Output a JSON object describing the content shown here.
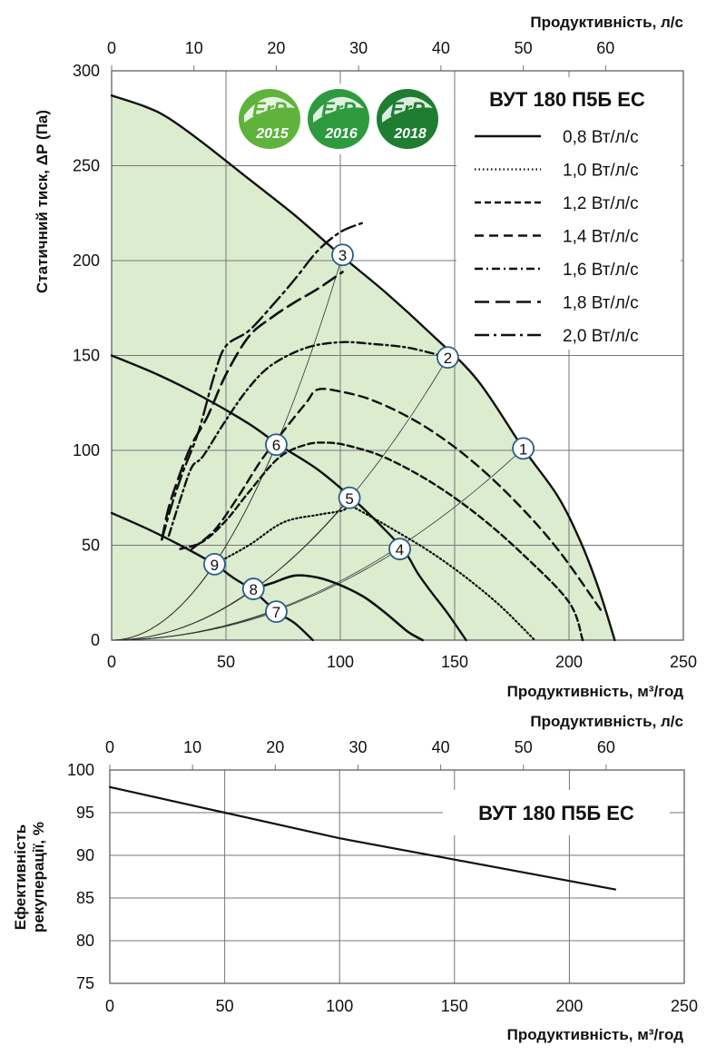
{
  "chart_data": [
    {
      "type": "line",
      "title": "ВУТ 180 П5Б ЕС",
      "xlabel": "Продуктивність, м³/год",
      "x2label": "Продуктивність, л/с",
      "ylabel": "Статичний тиск, ΔР (Па)",
      "xlim": [
        0,
        250
      ],
      "ylim": [
        0,
        300
      ],
      "x_ticks": [
        "0",
        "50",
        "100",
        "150",
        "200",
        "250"
      ],
      "x2_ticks": [
        "0",
        "10",
        "20",
        "30",
        "40",
        "50",
        "60"
      ],
      "y_ticks": [
        "0",
        "50",
        "100",
        "150",
        "200",
        "250",
        "300"
      ],
      "grid": true,
      "badges": [
        {
          "text": "ErP",
          "year": "2015",
          "color": "#5fb33c"
        },
        {
          "text": "ErP",
          "year": "2016",
          "color": "#2e9a3e"
        },
        {
          "text": "ErP",
          "year": "2018",
          "color": "#1f7d32"
        }
      ],
      "legend": [
        {
          "label": "0,8 Вт/л/с",
          "dash": "solid"
        },
        {
          "label": "1,0 Вт/л/с",
          "dash": "dotted"
        },
        {
          "label": "1,2 Вт/л/с",
          "dash": "short-dash"
        },
        {
          "label": "1,4 Вт/л/с",
          "dash": "dash"
        },
        {
          "label": "1,6 Вт/л/с",
          "dash": "dash-dot"
        },
        {
          "label": "1,8 Вт/л/с",
          "dash": "long-dash"
        },
        {
          "label": "2,0 Вт/л/с",
          "dash": "long-dash-dot"
        }
      ],
      "fan_curves": [
        {
          "name": "max",
          "x": [
            0,
            15,
            25,
            40,
            60,
            80,
            100,
            120,
            140,
            160,
            180,
            195,
            205,
            213,
            220
          ],
          "y": [
            287,
            281,
            275,
            262,
            243,
            224,
            203,
            183,
            161,
            137,
            101,
            76,
            52,
            27,
            0
          ]
        },
        {
          "name": "mid",
          "x": [
            0,
            20,
            40,
            60,
            73,
            90,
            105,
            118,
            128,
            134,
            140,
            147,
            155
          ],
          "y": [
            150,
            140,
            128,
            114,
            103,
            90,
            75,
            60,
            47,
            35,
            25,
            14,
            0
          ]
        },
        {
          "name": "min",
          "x": [
            0,
            15,
            30,
            45,
            53,
            62,
            72,
            80,
            88
          ],
          "y": [
            67,
            59,
            50,
            40,
            33,
            26,
            15,
            9,
            0
          ]
        }
      ],
      "sfp_curves": [
        {
          "dash": "solid",
          "x": [
            62,
            70,
            80,
            90,
            100,
            110,
            118,
            125,
            130,
            136
          ],
          "y": [
            27,
            30,
            34,
            33,
            29,
            23,
            16,
            9,
            4,
            0
          ]
        },
        {
          "dash": "dotted",
          "x": [
            45,
            60,
            75,
            90,
            100,
            105,
            112,
            125,
            140,
            155,
            170,
            185
          ],
          "y": [
            40,
            50,
            62,
            66,
            68,
            70,
            66,
            57,
            46,
            33,
            18,
            0
          ]
        },
        {
          "dash": "short-dash",
          "x": [
            30,
            40,
            50,
            60,
            73,
            85,
            95,
            105,
            120,
            140,
            160,
            180,
            200,
            206
          ],
          "y": [
            48,
            52,
            63,
            78,
            96,
            103,
            104,
            102,
            96,
            83,
            66,
            45,
            20,
            0
          ]
        },
        {
          "dash": "dash",
          "x": [
            35,
            45,
            55,
            65,
            75,
            85,
            90,
            100,
            115,
            135,
            155,
            175,
            195,
            215
          ],
          "y": [
            48,
            58,
            75,
            94,
            110,
            125,
            132,
            131,
            126,
            114,
            97,
            75,
            48,
            14
          ]
        },
        {
          "dash": "dash-dot",
          "x": [
            25,
            30,
            35,
            40,
            50,
            60,
            70,
            85,
            100,
            115,
            130,
            147
          ],
          "y": [
            55,
            74,
            91,
            97,
            116,
            133,
            145,
            154,
            157,
            156,
            154,
            149
          ]
        },
        {
          "dash": "long-dash",
          "x": [
            22,
            25,
            30,
            35,
            42,
            50,
            60,
            70,
            80,
            90,
            101
          ],
          "y": [
            53,
            70,
            88,
            103,
            118,
            140,
            160,
            170,
            178,
            185,
            194
          ]
        },
        {
          "dash": "long-dash-dot",
          "x": [
            22,
            26,
            31,
            38,
            45,
            50,
            60,
            70,
            80,
            90,
            100,
            110
          ],
          "y": [
            53,
            70,
            88,
            110,
            140,
            155,
            163,
            176,
            190,
            205,
            215,
            220
          ]
        }
      ],
      "system_curves": [
        {
          "to": [
            180,
            101
          ]
        },
        {
          "to": [
            147,
            149
          ]
        },
        {
          "to": [
            101,
            203
          ]
        },
        {
          "to": [
            126,
            48
          ]
        },
        {
          "to": [
            104,
            75
          ]
        },
        {
          "to": [
            72,
            103
          ]
        },
        {
          "to": [
            72,
            15
          ]
        },
        {
          "to": [
            62,
            27
          ]
        },
        {
          "to": [
            45,
            40
          ]
        }
      ],
      "markers": [
        {
          "label": "1",
          "x": 180,
          "y": 101
        },
        {
          "label": "2",
          "x": 147,
          "y": 149
        },
        {
          "label": "3",
          "x": 101,
          "y": 203
        },
        {
          "label": "4",
          "x": 126,
          "y": 48
        },
        {
          "label": "5",
          "x": 104,
          "y": 75
        },
        {
          "label": "6",
          "x": 72,
          "y": 103
        },
        {
          "label": "7",
          "x": 72,
          "y": 15
        },
        {
          "label": "8",
          "x": 62,
          "y": 27
        },
        {
          "label": "9",
          "x": 45,
          "y": 40
        }
      ],
      "fill_color": "#dbeccf"
    },
    {
      "type": "line",
      "title": "ВУТ 180 П5Б ЕС",
      "xlabel": "Продуктивність, м³/год",
      "x2label": "Продуктивність, л/с",
      "ylabel_line1": "Ефективність",
      "ylabel_line2": "рекуперації, %",
      "xlim": [
        0,
        250
      ],
      "ylim": [
        75,
        100
      ],
      "x_ticks": [
        "0",
        "50",
        "100",
        "150",
        "200",
        "250"
      ],
      "x2_ticks": [
        "0",
        "10",
        "20",
        "30",
        "40",
        "50",
        "60"
      ],
      "y_ticks": [
        "75",
        "80",
        "85",
        "90",
        "95",
        "100"
      ],
      "grid": true,
      "series": [
        {
          "x": [
            0,
            50,
            100,
            150,
            200,
            220
          ],
          "y": [
            98,
            95,
            92,
            89.5,
            87,
            86
          ]
        }
      ]
    }
  ]
}
